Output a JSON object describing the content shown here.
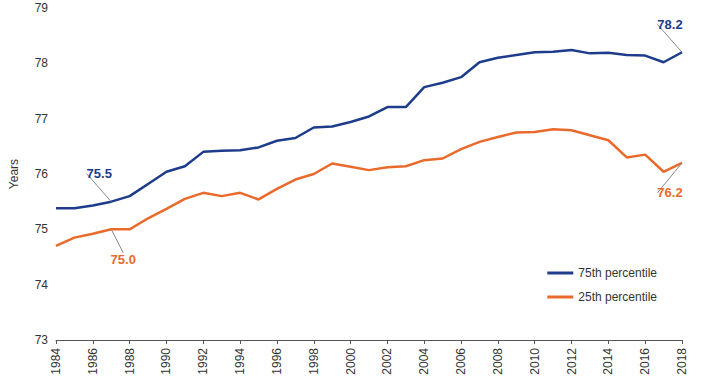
{
  "chart_data": {
    "type": "line",
    "y_label": "Years",
    "x": [
      1984,
      1985,
      1986,
      1987,
      1988,
      1989,
      1990,
      1991,
      1992,
      1993,
      1994,
      1995,
      1996,
      1997,
      1998,
      1999,
      2000,
      2001,
      2002,
      2003,
      2004,
      2005,
      2006,
      2007,
      2008,
      2009,
      2010,
      2011,
      2012,
      2013,
      2014,
      2015,
      2016,
      2017,
      2018
    ],
    "series": [
      {
        "name": "75th percentile",
        "color": "#1d3c8c",
        "values": [
          75.38,
          75.38,
          75.43,
          75.5,
          75.6,
          75.82,
          76.04,
          76.14,
          76.4,
          76.42,
          76.43,
          76.48,
          76.6,
          76.65,
          76.84,
          76.86,
          76.94,
          77.04,
          77.21,
          77.21,
          77.57,
          77.65,
          77.75,
          78.02,
          78.1,
          78.15,
          78.2,
          78.21,
          78.24,
          78.18,
          78.19,
          78.15,
          78.14,
          78.02,
          78.2
        ]
      },
      {
        "name": "25th percentile",
        "color": "#ea6a2c",
        "values": [
          74.7,
          74.85,
          74.92,
          75.0,
          75.0,
          75.2,
          75.37,
          75.55,
          75.66,
          75.6,
          75.66,
          75.54,
          75.73,
          75.9,
          76.0,
          76.19,
          76.13,
          76.07,
          76.12,
          76.14,
          76.25,
          76.28,
          76.45,
          76.58,
          76.67,
          76.75,
          76.76,
          76.81,
          76.79,
          76.7,
          76.61,
          76.3,
          76.35,
          76.04,
          76.2
        ]
      }
    ],
    "annotations": [
      {
        "series": "75th percentile",
        "x": 1987,
        "text": "75.5"
      },
      {
        "series": "25th percentile",
        "x": 1987,
        "text": "75.0"
      },
      {
        "series": "75th percentile",
        "x": 2018,
        "text": "78.2"
      },
      {
        "series": "25th percentile",
        "x": 2018,
        "text": "76.2"
      }
    ],
    "xlim": [
      1984,
      2018
    ],
    "xticks": [
      1984,
      1986,
      1988,
      1990,
      1992,
      1994,
      1996,
      1998,
      2000,
      2002,
      2004,
      2006,
      2008,
      2010,
      2012,
      2014,
      2016,
      2018
    ],
    "ylim": [
      73,
      79
    ],
    "yticks": [
      73,
      74,
      75,
      76,
      77,
      78,
      79
    ],
    "grid": false,
    "legend": "lower right"
  }
}
